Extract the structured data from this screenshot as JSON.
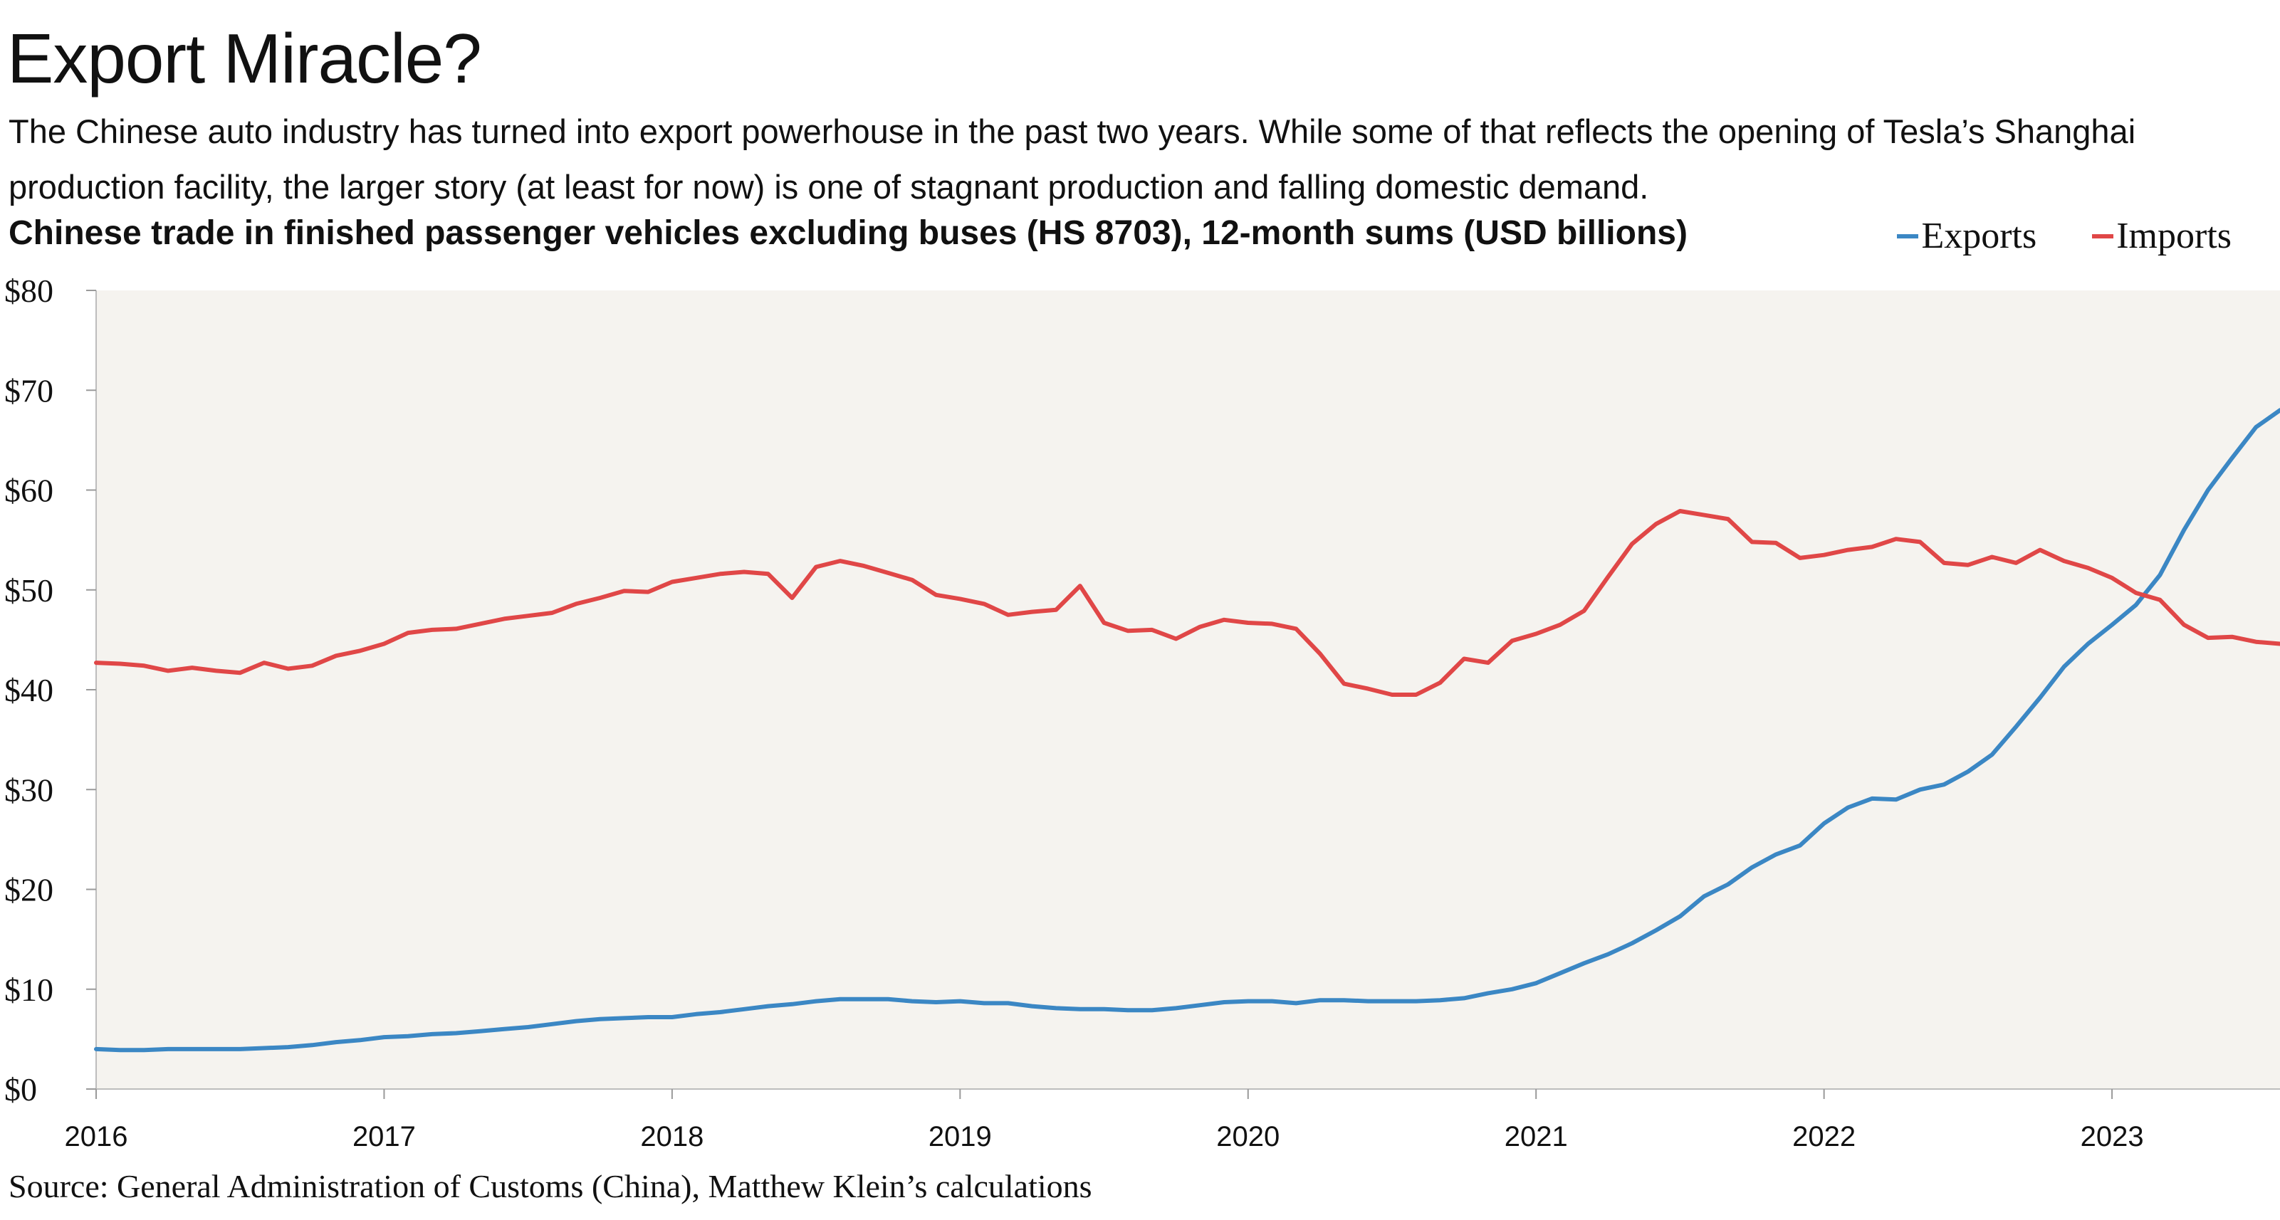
{
  "header": {
    "title": "Export Miracle?",
    "subtitle": "The Chinese auto industry has turned into export powerhouse in the past two years. While some of that reflects the opening of Tesla’s Shanghai production facility, the larger story (at least for now) is one of stagnant production and falling domestic demand."
  },
  "footer": {
    "source": "Source: General Administration of Customs (China), Matthew Klein’s calculations"
  },
  "chart_data": {
    "type": "line",
    "title": "Chinese trade in finished passenger vehicles excluding buses (HS 8703), 12-month sums (USD billions)",
    "xlabel": "",
    "ylabel": "",
    "xlim": [
      "2016-01",
      "2023-08"
    ],
    "ylim": [
      0,
      80
    ],
    "y_ticks": [
      "$0",
      "$10",
      "$20",
      "$30",
      "$40",
      "$50",
      "$60",
      "$70",
      "$80"
    ],
    "x_ticks": [
      "2016",
      "2017",
      "2018",
      "2019",
      "2020",
      "2021",
      "2022",
      "2023"
    ],
    "grid": false,
    "background_color": "#f5f3ef",
    "legend": {
      "placement": "top-right"
    },
    "x": [
      "2016-01",
      "2016-02",
      "2016-03",
      "2016-04",
      "2016-05",
      "2016-06",
      "2016-07",
      "2016-08",
      "2016-09",
      "2016-10",
      "2016-11",
      "2016-12",
      "2017-01",
      "2017-02",
      "2017-03",
      "2017-04",
      "2017-05",
      "2017-06",
      "2017-07",
      "2017-08",
      "2017-09",
      "2017-10",
      "2017-11",
      "2017-12",
      "2018-01",
      "2018-02",
      "2018-03",
      "2018-04",
      "2018-05",
      "2018-06",
      "2018-07",
      "2018-08",
      "2018-09",
      "2018-10",
      "2018-11",
      "2018-12",
      "2019-01",
      "2019-02",
      "2019-03",
      "2019-04",
      "2019-05",
      "2019-06",
      "2019-07",
      "2019-08",
      "2019-09",
      "2019-10",
      "2019-11",
      "2019-12",
      "2020-01",
      "2020-02",
      "2020-03",
      "2020-04",
      "2020-05",
      "2020-06",
      "2020-07",
      "2020-08",
      "2020-09",
      "2020-10",
      "2020-11",
      "2020-12",
      "2021-01",
      "2021-02",
      "2021-03",
      "2021-04",
      "2021-05",
      "2021-06",
      "2021-07",
      "2021-08",
      "2021-09",
      "2021-10",
      "2021-11",
      "2021-12",
      "2022-01",
      "2022-02",
      "2022-03",
      "2022-04",
      "2022-05",
      "2022-06",
      "2022-07",
      "2022-08",
      "2022-09",
      "2022-10",
      "2022-11",
      "2022-12",
      "2023-01",
      "2023-02",
      "2023-03",
      "2023-04",
      "2023-05",
      "2023-06",
      "2023-07",
      "2023-08"
    ],
    "series": [
      {
        "name": "Exports",
        "color": "#3b87c4",
        "values": [
          4.0,
          3.9,
          3.9,
          4.0,
          4.0,
          4.0,
          4.0,
          4.1,
          4.2,
          4.4,
          4.7,
          4.9,
          5.2,
          5.3,
          5.5,
          5.6,
          5.8,
          6.0,
          6.2,
          6.5,
          6.8,
          7.0,
          7.1,
          7.2,
          7.2,
          7.5,
          7.7,
          8.0,
          8.3,
          8.5,
          8.8,
          9.0,
          9.0,
          9.0,
          8.8,
          8.7,
          8.8,
          8.6,
          8.6,
          8.3,
          8.1,
          8.0,
          8.0,
          7.9,
          7.9,
          8.1,
          8.4,
          8.7,
          8.8,
          8.8,
          8.6,
          8.9,
          8.9,
          8.8,
          8.8,
          8.8,
          8.9,
          9.1,
          9.6,
          10.0,
          10.6,
          11.6,
          12.6,
          13.5,
          14.6,
          15.9,
          17.3,
          19.3,
          20.5,
          22.2,
          23.5,
          24.4,
          26.6,
          28.2,
          29.1,
          29.0,
          30.0,
          30.5,
          31.8,
          33.5,
          36.3,
          39.2,
          42.3,
          44.6,
          46.5,
          48.5,
          51.5,
          56.0,
          60.0,
          63.2,
          66.3,
          68.0
        ]
      },
      {
        "name": "Imports",
        "color": "#e04747",
        "values": [
          42.7,
          42.6,
          42.4,
          41.9,
          42.2,
          41.9,
          41.7,
          42.7,
          42.1,
          42.4,
          43.4,
          43.9,
          44.6,
          45.7,
          46.0,
          46.1,
          46.6,
          47.1,
          47.4,
          47.7,
          48.6,
          49.2,
          49.9,
          49.8,
          50.8,
          51.2,
          51.6,
          51.8,
          51.6,
          49.2,
          52.3,
          52.9,
          52.4,
          51.7,
          51.0,
          49.5,
          49.1,
          48.6,
          47.5,
          47.8,
          48.0,
          50.4,
          46.7,
          45.9,
          46.0,
          45.1,
          46.3,
          47.0,
          46.7,
          46.6,
          46.1,
          43.6,
          40.6,
          40.1,
          39.5,
          39.5,
          40.7,
          43.1,
          42.7,
          44.9,
          45.6,
          46.5,
          47.9,
          51.3,
          54.6,
          56.6,
          57.9,
          57.5,
          57.1,
          54.8,
          54.7,
          53.2,
          53.5,
          54.0,
          54.3,
          55.1,
          54.8,
          52.7,
          52.5,
          53.3,
          52.7,
          54.0,
          52.9,
          52.2,
          51.2,
          49.7,
          49.0,
          46.5,
          45.2,
          45.3,
          44.8,
          44.6
        ]
      }
    ]
  }
}
